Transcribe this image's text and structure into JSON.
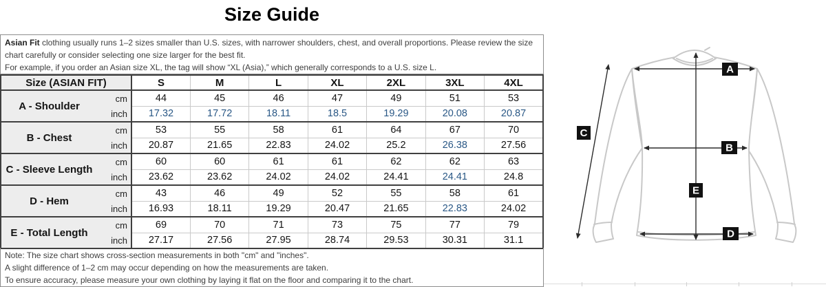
{
  "page": {
    "title": "Size Guide"
  },
  "intro": {
    "lead_bold": "Asian Fit",
    "lead_rest": " clothing usually runs 1–2 sizes smaller than U.S. sizes, with narrower shoulders, chest, and overall proportions. Please review the size chart carefully or consider selecting one size larger for the best fit.",
    "example": "For example, if you order an Asian size XL, the tag will show “XL (Asia),” which generally corresponds to a U.S. size L."
  },
  "table": {
    "header": {
      "label": "Size (ASIAN FIT)",
      "sizes": [
        "S",
        "M",
        "L",
        "XL",
        "2XL",
        "3XL",
        "4XL"
      ]
    },
    "unit_cm": "cm",
    "unit_inch": "inch",
    "rows": [
      {
        "label": "A - Shoulder",
        "cm": [
          "44",
          "45",
          "46",
          "47",
          "49",
          "51",
          "53"
        ],
        "inch": [
          "17.32",
          "17.72",
          "18.11",
          "18.5",
          "19.29",
          "20.08",
          "20.87"
        ],
        "inch_blue": [
          0,
          1,
          2,
          3,
          4,
          5,
          6
        ]
      },
      {
        "label": "B - Chest",
        "cm": [
          "53",
          "55",
          "58",
          "61",
          "64",
          "67",
          "70"
        ],
        "inch": [
          "20.87",
          "21.65",
          "22.83",
          "24.02",
          "25.2",
          "26.38",
          "27.56"
        ],
        "inch_blue": [
          5
        ]
      },
      {
        "label": "C - Sleeve Length",
        "cm": [
          "60",
          "60",
          "61",
          "61",
          "62",
          "62",
          "63"
        ],
        "inch": [
          "23.62",
          "23.62",
          "24.02",
          "24.02",
          "24.41",
          "24.41",
          "24.8"
        ],
        "inch_blue": [
          5
        ]
      },
      {
        "label": "D - Hem",
        "cm": [
          "43",
          "46",
          "49",
          "52",
          "55",
          "58",
          "61"
        ],
        "inch": [
          "16.93",
          "18.11",
          "19.29",
          "20.47",
          "21.65",
          "22.83",
          "24.02"
        ],
        "inch_blue": [
          5
        ]
      },
      {
        "label": "E - Total Length",
        "cm": [
          "69",
          "70",
          "71",
          "73",
          "75",
          "77",
          "79"
        ],
        "inch": [
          "27.17",
          "27.56",
          "27.95",
          "28.74",
          "29.53",
          "30.31",
          "31.1"
        ],
        "inch_blue": []
      }
    ]
  },
  "notes": {
    "lines": [
      "Note: The size chart shows cross-section measurements in both \"cm\" and \"inches\".",
      "A slight difference of 1–2 cm may occur depending on how the measurements are taken.",
      "To ensure accuracy, please measure your own clothing by laying it flat on the floor and comparing it to the chart."
    ]
  },
  "diagram": {
    "labels": [
      "A",
      "B",
      "C",
      "D",
      "E"
    ]
  },
  "colors": {
    "accent_blue": "#2a5886",
    "shirt_outline": "#c8c8c8",
    "arrow": "#2b2b2b",
    "header_bg": "#ededed"
  }
}
